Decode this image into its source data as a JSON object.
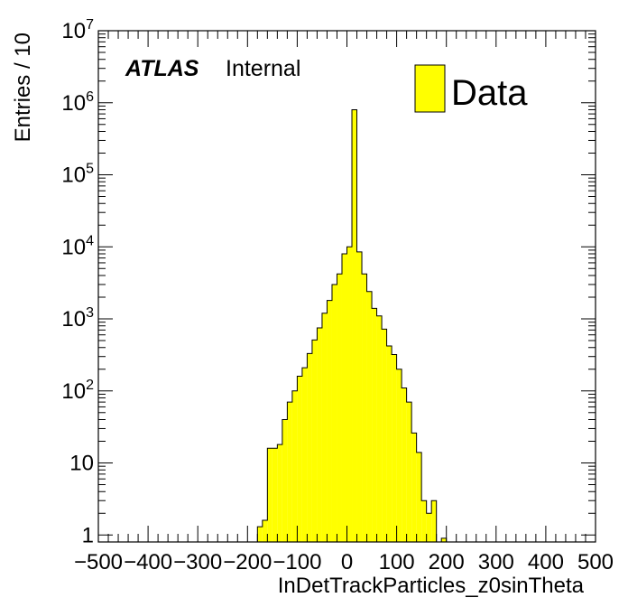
{
  "chart_data": {
    "type": "bar",
    "style": "histogram-step",
    "y_scale": "log",
    "xlim": [
      -500,
      500
    ],
    "ylim": [
      0.8,
      10000000
    ],
    "bin_width": 10,
    "xlabel": "InDetTrackParticles_z0sinTheta",
    "ylabel": "Entries / 10",
    "x_ticks": [
      "−500",
      "−400",
      "−300",
      "−200",
      "−100",
      "0",
      "100",
      "200",
      "300",
      "400",
      "500"
    ],
    "x_tick_values": [
      -500,
      -400,
      -300,
      -200,
      -100,
      0,
      100,
      200,
      300,
      400,
      500
    ],
    "y_ticks": [
      {
        "value": 1,
        "base": "1",
        "exp": ""
      },
      {
        "value": 10,
        "base": "10",
        "exp": ""
      },
      {
        "value": 100,
        "base": "10",
        "exp": "2"
      },
      {
        "value": 1000,
        "base": "10",
        "exp": "3"
      },
      {
        "value": 10000,
        "base": "10",
        "exp": "4"
      },
      {
        "value": 100000,
        "base": "10",
        "exp": "5"
      },
      {
        "value": 1000000,
        "base": "10",
        "exp": "6"
      },
      {
        "value": 10000000,
        "base": "10",
        "exp": "7"
      }
    ],
    "grid": false,
    "legend_position": "top-right",
    "fill_color": "#ffff00",
    "edge_color": "#000000",
    "series": [
      {
        "name": "Data",
        "bin_lows": [
          -180,
          -170,
          -160,
          -150,
          -140,
          -130,
          -120,
          -110,
          -100,
          -90,
          -80,
          -70,
          -60,
          -50,
          -40,
          -30,
          -20,
          -10,
          0,
          10,
          20,
          30,
          40,
          50,
          60,
          70,
          80,
          90,
          100,
          110,
          120,
          130,
          140,
          150,
          160,
          170,
          180,
          190
        ],
        "values": [
          1.3,
          1.6,
          16,
          16,
          18,
          40,
          70,
          100,
          160,
          210,
          330,
          510,
          750,
          1200,
          1800,
          3000,
          4200,
          8000,
          10000,
          800000,
          8500,
          4200,
          2400,
          1400,
          1100,
          720,
          420,
          320,
          200,
          110,
          70,
          26,
          14,
          3,
          2,
          3,
          0,
          0.9
        ]
      }
    ]
  },
  "annotations": {
    "experiment": "ATLAS",
    "status": "Internal"
  },
  "legend": {
    "entries": [
      {
        "label": "Data",
        "color": "#ffff00"
      }
    ]
  }
}
